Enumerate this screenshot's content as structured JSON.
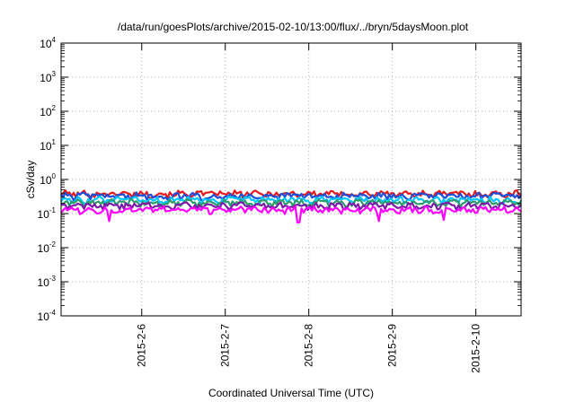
{
  "chart_data": {
    "type": "line",
    "title": "/data/run/goesPlots/archive/2015-02-10/13:00/flux/../bryn/5daysMoon.plot",
    "xlabel": "Coordinated Universal Time (UTC)",
    "ylabel": "cSv/day",
    "y_scale": "log",
    "ylim": [
      0.0001,
      10000
    ],
    "y_ticks": [
      {
        "base": "10",
        "exp": "-4"
      },
      {
        "base": "10",
        "exp": "-3"
      },
      {
        "base": "10",
        "exp": "-2"
      },
      {
        "base": "10",
        "exp": "-1"
      },
      {
        "base": "10",
        "exp": "0"
      },
      {
        "base": "10",
        "exp": "1"
      },
      {
        "base": "10",
        "exp": "2"
      },
      {
        "base": "10",
        "exp": "3"
      },
      {
        "base": "10",
        "exp": "4"
      }
    ],
    "xlim": [
      "2015-02-05T00:50",
      "2015-02-10T13:00"
    ],
    "x_tick_labels": [
      "2015-2-6",
      "2015-2-7",
      "2015-2-8",
      "2015-2-9",
      "2015-2-10"
    ],
    "x_ticks": [
      "2015-02-06T00:00",
      "2015-02-07T00:00",
      "2015-02-08T00:00",
      "2015-02-09T00:00",
      "2015-02-10T00:00"
    ],
    "grid": true,
    "legend": "none",
    "series": [
      {
        "color": "#e41a1c",
        "level": 0.38,
        "dips": []
      },
      {
        "color": "#1f4fd8",
        "level": 0.33,
        "dips": []
      },
      {
        "color": "#00c8ff",
        "level": 0.25,
        "dips": []
      },
      {
        "color": "#2e9b6c",
        "level": 0.21,
        "dips": []
      },
      {
        "color": "#7a1ca8",
        "level": 0.17,
        "dips": []
      },
      {
        "color": "#ff00ff",
        "level": 0.13,
        "dips": [
          {
            "x": "2015-02-05T14:30",
            "y": 0.06
          },
          {
            "x": "2015-02-07T21:00",
            "y": 0.055
          },
          {
            "x": "2015-02-08T20:00",
            "y": 0.06
          },
          {
            "x": "2015-02-09T15:00",
            "y": 0.065
          }
        ]
      }
    ]
  }
}
